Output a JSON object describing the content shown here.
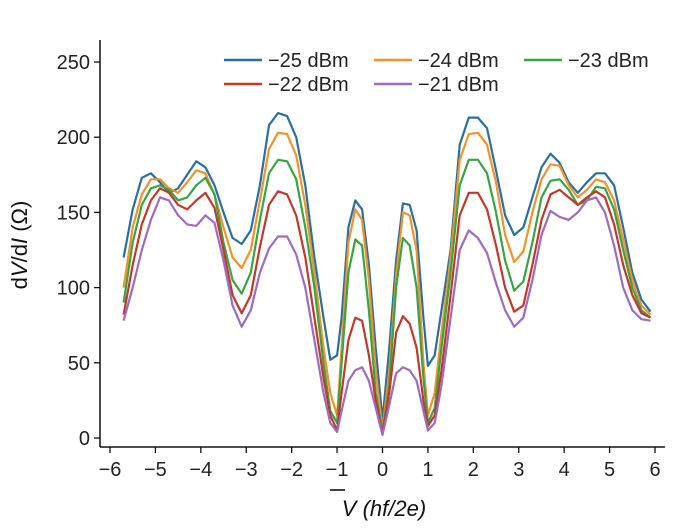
{
  "chart_data": {
    "type": "line",
    "xlabel_symbol": "V",
    "xlabel_units": " (hf/2e)",
    "ylabel": "dV/dI (Ω)",
    "xlim": [
      -6,
      6
    ],
    "ylim": [
      0,
      250
    ],
    "xticks": [
      -6,
      -5,
      -4,
      -3,
      -2,
      -1,
      0,
      1,
      2,
      3,
      4,
      5,
      6
    ],
    "xtick_labels": [
      "−6",
      "−5",
      "−4",
      "−3",
      "−2",
      "−1",
      "0",
      "1",
      "2",
      "3",
      "4",
      "5",
      "6"
    ],
    "yticks": [
      0,
      50,
      100,
      150,
      200,
      250
    ],
    "ytick_labels": [
      "0",
      "50",
      "100",
      "150",
      "200",
      "250"
    ],
    "grid": false,
    "legend_position": "top-right",
    "series": [
      {
        "name": "−25 dBm",
        "color": "#2a6fa0",
        "points": [
          [
            -5.7,
            120
          ],
          [
            -5.5,
            152
          ],
          [
            -5.3,
            173
          ],
          [
            -5.1,
            176
          ],
          [
            -4.9,
            170
          ],
          [
            -4.7,
            163
          ],
          [
            -4.5,
            166
          ],
          [
            -4.3,
            175
          ],
          [
            -4.1,
            184
          ],
          [
            -3.9,
            180
          ],
          [
            -3.7,
            168
          ],
          [
            -3.5,
            150
          ],
          [
            -3.3,
            133
          ],
          [
            -3.1,
            129
          ],
          [
            -2.9,
            138
          ],
          [
            -2.7,
            168
          ],
          [
            -2.5,
            208
          ],
          [
            -2.3,
            216
          ],
          [
            -2.1,
            214
          ],
          [
            -1.9,
            200
          ],
          [
            -1.7,
            168
          ],
          [
            -1.5,
            120
          ],
          [
            -1.3,
            80
          ],
          [
            -1.15,
            52
          ],
          [
            -1.0,
            55
          ],
          [
            -0.9,
            80
          ],
          [
            -0.75,
            140
          ],
          [
            -0.6,
            158
          ],
          [
            -0.45,
            152
          ],
          [
            -0.3,
            115
          ],
          [
            -0.15,
            60
          ],
          [
            0,
            12
          ],
          [
            0.15,
            60
          ],
          [
            0.3,
            118
          ],
          [
            0.45,
            156
          ],
          [
            0.6,
            155
          ],
          [
            0.75,
            138
          ],
          [
            0.9,
            80
          ],
          [
            1.0,
            48
          ],
          [
            1.15,
            55
          ],
          [
            1.3,
            85
          ],
          [
            1.5,
            125
          ],
          [
            1.7,
            195
          ],
          [
            1.9,
            213
          ],
          [
            2.1,
            213
          ],
          [
            2.3,
            206
          ],
          [
            2.5,
            178
          ],
          [
            2.7,
            148
          ],
          [
            2.9,
            135
          ],
          [
            3.1,
            140
          ],
          [
            3.3,
            160
          ],
          [
            3.5,
            180
          ],
          [
            3.7,
            189
          ],
          [
            3.9,
            183
          ],
          [
            4.1,
            170
          ],
          [
            4.3,
            163
          ],
          [
            4.5,
            170
          ],
          [
            4.7,
            176
          ],
          [
            4.9,
            176
          ],
          [
            5.1,
            168
          ],
          [
            5.3,
            140
          ],
          [
            5.5,
            110
          ],
          [
            5.7,
            92
          ],
          [
            5.9,
            84
          ]
        ]
      },
      {
        "name": "−24 dBm",
        "color": "#f0932b",
        "points": [
          [
            -5.7,
            100
          ],
          [
            -5.5,
            140
          ],
          [
            -5.3,
            162
          ],
          [
            -5.1,
            172
          ],
          [
            -4.9,
            172
          ],
          [
            -4.7,
            166
          ],
          [
            -4.5,
            163
          ],
          [
            -4.3,
            170
          ],
          [
            -4.1,
            178
          ],
          [
            -3.9,
            176
          ],
          [
            -3.7,
            162
          ],
          [
            -3.5,
            140
          ],
          [
            -3.3,
            120
          ],
          [
            -3.1,
            113
          ],
          [
            -2.9,
            125
          ],
          [
            -2.7,
            158
          ],
          [
            -2.5,
            192
          ],
          [
            -2.3,
            203
          ],
          [
            -2.1,
            202
          ],
          [
            -1.9,
            188
          ],
          [
            -1.7,
            155
          ],
          [
            -1.5,
            110
          ],
          [
            -1.3,
            60
          ],
          [
            -1.15,
            30
          ],
          [
            -1.0,
            15
          ],
          [
            -0.9,
            60
          ],
          [
            -0.75,
            130
          ],
          [
            -0.6,
            152
          ],
          [
            -0.45,
            145
          ],
          [
            -0.3,
            105
          ],
          [
            -0.15,
            45
          ],
          [
            0,
            5
          ],
          [
            0.15,
            45
          ],
          [
            0.3,
            108
          ],
          [
            0.45,
            150
          ],
          [
            0.6,
            148
          ],
          [
            0.75,
            125
          ],
          [
            0.9,
            50
          ],
          [
            1.0,
            15
          ],
          [
            1.15,
            30
          ],
          [
            1.3,
            70
          ],
          [
            1.5,
            120
          ],
          [
            1.7,
            185
          ],
          [
            1.9,
            202
          ],
          [
            2.1,
            203
          ],
          [
            2.3,
            195
          ],
          [
            2.5,
            170
          ],
          [
            2.7,
            135
          ],
          [
            2.9,
            117
          ],
          [
            3.1,
            124
          ],
          [
            3.3,
            150
          ],
          [
            3.5,
            172
          ],
          [
            3.7,
            182
          ],
          [
            3.9,
            181
          ],
          [
            4.1,
            168
          ],
          [
            4.3,
            160
          ],
          [
            4.5,
            165
          ],
          [
            4.7,
            172
          ],
          [
            4.9,
            170
          ],
          [
            5.1,
            158
          ],
          [
            5.3,
            132
          ],
          [
            5.5,
            105
          ],
          [
            5.7,
            88
          ],
          [
            5.9,
            82
          ]
        ]
      },
      {
        "name": "−23 dBm",
        "color": "#3aa345",
        "points": [
          [
            -5.7,
            90
          ],
          [
            -5.5,
            130
          ],
          [
            -5.3,
            155
          ],
          [
            -5.1,
            166
          ],
          [
            -4.9,
            168
          ],
          [
            -4.7,
            165
          ],
          [
            -4.5,
            158
          ],
          [
            -4.3,
            160
          ],
          [
            -4.1,
            168
          ],
          [
            -3.9,
            173
          ],
          [
            -3.7,
            162
          ],
          [
            -3.5,
            130
          ],
          [
            -3.3,
            105
          ],
          [
            -3.1,
            96
          ],
          [
            -2.9,
            110
          ],
          [
            -2.7,
            145
          ],
          [
            -2.5,
            176
          ],
          [
            -2.3,
            185
          ],
          [
            -2.1,
            184
          ],
          [
            -1.9,
            172
          ],
          [
            -1.7,
            140
          ],
          [
            -1.5,
            100
          ],
          [
            -1.3,
            50
          ],
          [
            -1.15,
            18
          ],
          [
            -1.0,
            10
          ],
          [
            -0.9,
            50
          ],
          [
            -0.75,
            110
          ],
          [
            -0.6,
            132
          ],
          [
            -0.45,
            128
          ],
          [
            -0.3,
            85
          ],
          [
            -0.15,
            30
          ],
          [
            0,
            4
          ],
          [
            0.15,
            35
          ],
          [
            0.3,
            100
          ],
          [
            0.45,
            133
          ],
          [
            0.6,
            128
          ],
          [
            0.75,
            100
          ],
          [
            0.9,
            40
          ],
          [
            1.0,
            10
          ],
          [
            1.15,
            20
          ],
          [
            1.3,
            60
          ],
          [
            1.5,
            110
          ],
          [
            1.7,
            168
          ],
          [
            1.9,
            185
          ],
          [
            2.1,
            185
          ],
          [
            2.3,
            176
          ],
          [
            2.5,
            150
          ],
          [
            2.7,
            118
          ],
          [
            2.9,
            98
          ],
          [
            3.1,
            104
          ],
          [
            3.3,
            130
          ],
          [
            3.5,
            160
          ],
          [
            3.7,
            171
          ],
          [
            3.9,
            172
          ],
          [
            4.1,
            165
          ],
          [
            4.3,
            155
          ],
          [
            4.5,
            158
          ],
          [
            4.7,
            167
          ],
          [
            4.9,
            166
          ],
          [
            5.1,
            152
          ],
          [
            5.3,
            125
          ],
          [
            5.5,
            100
          ],
          [
            5.7,
            85
          ],
          [
            5.9,
            80
          ]
        ]
      },
      {
        "name": "−22 dBm",
        "color": "#c0392b",
        "points": [
          [
            -5.7,
            82
          ],
          [
            -5.5,
            115
          ],
          [
            -5.3,
            142
          ],
          [
            -5.1,
            158
          ],
          [
            -4.9,
            166
          ],
          [
            -4.7,
            163
          ],
          [
            -4.5,
            155
          ],
          [
            -4.3,
            152
          ],
          [
            -4.1,
            158
          ],
          [
            -3.9,
            163
          ],
          [
            -3.7,
            153
          ],
          [
            -3.5,
            125
          ],
          [
            -3.3,
            95
          ],
          [
            -3.1,
            83
          ],
          [
            -2.9,
            95
          ],
          [
            -2.7,
            127
          ],
          [
            -2.5,
            155
          ],
          [
            -2.3,
            164
          ],
          [
            -2.1,
            162
          ],
          [
            -1.9,
            148
          ],
          [
            -1.7,
            120
          ],
          [
            -1.5,
            80
          ],
          [
            -1.3,
            40
          ],
          [
            -1.15,
            15
          ],
          [
            -1.0,
            5
          ],
          [
            -0.9,
            30
          ],
          [
            -0.75,
            65
          ],
          [
            -0.6,
            80
          ],
          [
            -0.45,
            78
          ],
          [
            -0.3,
            55
          ],
          [
            -0.15,
            25
          ],
          [
            0,
            3
          ],
          [
            0.15,
            30
          ],
          [
            0.3,
            70
          ],
          [
            0.45,
            81
          ],
          [
            0.6,
            76
          ],
          [
            0.75,
            60
          ],
          [
            0.9,
            25
          ],
          [
            1.0,
            8
          ],
          [
            1.15,
            15
          ],
          [
            1.3,
            45
          ],
          [
            1.5,
            95
          ],
          [
            1.7,
            148
          ],
          [
            1.9,
            163
          ],
          [
            2.1,
            163
          ],
          [
            2.3,
            152
          ],
          [
            2.5,
            128
          ],
          [
            2.7,
            100
          ],
          [
            2.9,
            84
          ],
          [
            3.1,
            88
          ],
          [
            3.3,
            115
          ],
          [
            3.5,
            145
          ],
          [
            3.7,
            162
          ],
          [
            3.9,
            165
          ],
          [
            4.1,
            160
          ],
          [
            4.3,
            155
          ],
          [
            4.5,
            160
          ],
          [
            4.7,
            164
          ],
          [
            4.9,
            160
          ],
          [
            5.1,
            142
          ],
          [
            5.3,
            115
          ],
          [
            5.5,
            95
          ],
          [
            5.7,
            83
          ],
          [
            5.9,
            80
          ]
        ]
      },
      {
        "name": "−21 dBm",
        "color": "#9b6cc0",
        "points": [
          [
            -5.7,
            78
          ],
          [
            -5.5,
            100
          ],
          [
            -5.3,
            125
          ],
          [
            -5.1,
            145
          ],
          [
            -4.9,
            160
          ],
          [
            -4.7,
            158
          ],
          [
            -4.5,
            148
          ],
          [
            -4.3,
            142
          ],
          [
            -4.1,
            141
          ],
          [
            -3.9,
            148
          ],
          [
            -3.7,
            143
          ],
          [
            -3.5,
            118
          ],
          [
            -3.3,
            88
          ],
          [
            -3.1,
            74
          ],
          [
            -2.9,
            85
          ],
          [
            -2.7,
            110
          ],
          [
            -2.5,
            126
          ],
          [
            -2.3,
            134
          ],
          [
            -2.1,
            134
          ],
          [
            -1.9,
            122
          ],
          [
            -1.7,
            100
          ],
          [
            -1.5,
            65
          ],
          [
            -1.3,
            30
          ],
          [
            -1.15,
            10
          ],
          [
            -1.0,
            4
          ],
          [
            -0.9,
            18
          ],
          [
            -0.75,
            38
          ],
          [
            -0.6,
            45
          ],
          [
            -0.45,
            47
          ],
          [
            -0.3,
            38
          ],
          [
            -0.15,
            20
          ],
          [
            0,
            2
          ],
          [
            0.15,
            22
          ],
          [
            0.3,
            43
          ],
          [
            0.45,
            47
          ],
          [
            0.6,
            45
          ],
          [
            0.75,
            38
          ],
          [
            0.9,
            18
          ],
          [
            1.0,
            5
          ],
          [
            1.15,
            10
          ],
          [
            1.3,
            35
          ],
          [
            1.5,
            80
          ],
          [
            1.7,
            125
          ],
          [
            1.9,
            138
          ],
          [
            2.1,
            133
          ],
          [
            2.3,
            123
          ],
          [
            2.5,
            103
          ],
          [
            2.7,
            85
          ],
          [
            2.9,
            74
          ],
          [
            3.1,
            80
          ],
          [
            3.3,
            105
          ],
          [
            3.5,
            135
          ],
          [
            3.7,
            151
          ],
          [
            3.9,
            147
          ],
          [
            4.1,
            145
          ],
          [
            4.3,
            150
          ],
          [
            4.5,
            158
          ],
          [
            4.7,
            160
          ],
          [
            4.9,
            150
          ],
          [
            5.1,
            128
          ],
          [
            5.3,
            100
          ],
          [
            5.5,
            85
          ],
          [
            5.7,
            79
          ],
          [
            5.9,
            78
          ]
        ]
      }
    ]
  }
}
